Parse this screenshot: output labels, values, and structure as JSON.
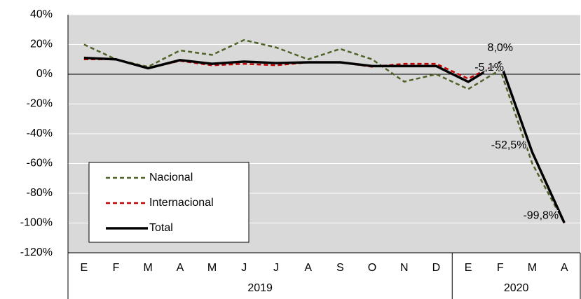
{
  "chart_data": {
    "type": "line",
    "categories": [
      "E",
      "F",
      "M",
      "A",
      "M",
      "J",
      "J",
      "A",
      "S",
      "O",
      "N",
      "D",
      "E",
      "F",
      "M",
      "A"
    ],
    "category_groups": [
      "2019",
      null,
      null,
      null,
      null,
      null,
      null,
      null,
      null,
      null,
      null,
      null,
      "2020",
      null,
      null,
      null
    ],
    "series": [
      {
        "name": "Nacional",
        "color": "#4f6228",
        "dash": "6,4",
        "width": 2.5,
        "values": [
          20,
          10,
          5,
          16,
          13,
          23,
          18,
          10,
          17,
          10,
          -5,
          0,
          -10,
          3,
          -60,
          -100
        ]
      },
      {
        "name": "Internacional",
        "color": "#c00000",
        "dash": "6,4",
        "width": 2.5,
        "values": [
          10,
          10,
          4,
          9,
          6,
          7,
          6,
          8,
          8,
          5,
          7,
          7,
          -3,
          8,
          -52,
          -100
        ]
      },
      {
        "name": "Total",
        "color": "#000000",
        "dash": "none",
        "width": 3.5,
        "values": [
          11,
          10,
          4,
          9.5,
          7,
          8.5,
          7.5,
          8,
          8,
          5.5,
          5.5,
          5.5,
          -5.1,
          8.0,
          -52.5,
          -99.8
        ],
        "value_labels": [
          null,
          null,
          null,
          null,
          null,
          null,
          null,
          null,
          null,
          null,
          null,
          null,
          "-5,1%",
          "8,0%",
          "-52,5%",
          "-99,8%"
        ]
      }
    ],
    "ylim": [
      -120,
      40
    ],
    "yticks": [
      {
        "value": -120,
        "label": "-120%"
      },
      {
        "value": -100,
        "label": "-100%"
      },
      {
        "value": -80,
        "label": "-80%"
      },
      {
        "value": -60,
        "label": "-60%"
      },
      {
        "value": -40,
        "label": "-40%"
      },
      {
        "value": -20,
        "label": "-20%"
      },
      {
        "value": 0,
        "label": "0%"
      },
      {
        "value": 20,
        "label": "20%"
      },
      {
        "value": 40,
        "label": "40%"
      }
    ],
    "grid": true,
    "legend": "lower left"
  }
}
